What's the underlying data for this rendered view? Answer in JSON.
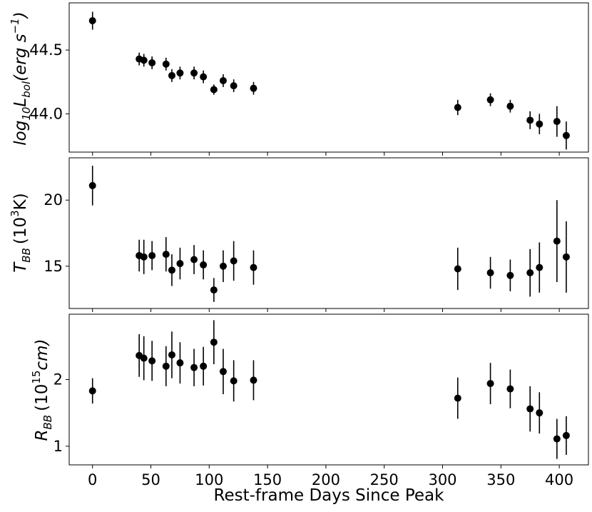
{
  "chart_data": [
    {
      "type": "scatter",
      "title": "",
      "xlabel": "Rest-frame Days Since Peak",
      "ylabel": "log10 Lbol (erg s^-1)",
      "ylabel_parts": {
        "prefix": "log",
        "sub1": "10",
        "main": "L",
        "sub2": "bol",
        "unit": "(erg s",
        "sup": "−1",
        "close": ")"
      },
      "xlim": [
        -20,
        425
      ],
      "ylim": [
        43.7,
        44.87
      ],
      "yticks": [
        44.0,
        44.5
      ],
      "ytick_labels": [
        "44.0",
        "44.5"
      ],
      "errorbars": true,
      "grid": false,
      "series": [
        {
          "x": [
            0,
            40,
            44,
            51,
            63,
            68,
            75,
            87,
            95,
            104,
            112,
            121,
            138,
            313,
            341,
            358,
            375,
            383,
            398,
            406
          ],
          "y": [
            44.73,
            44.43,
            44.42,
            44.4,
            44.39,
            44.3,
            44.32,
            44.32,
            44.29,
            44.19,
            44.26,
            44.22,
            44.2,
            44.05,
            44.11,
            44.06,
            43.95,
            43.92,
            43.94,
            43.83
          ],
          "err": [
            0.07,
            0.05,
            0.05,
            0.05,
            0.05,
            0.05,
            0.05,
            0.05,
            0.05,
            0.04,
            0.05,
            0.05,
            0.05,
            0.06,
            0.05,
            0.05,
            0.07,
            0.08,
            0.12,
            0.11
          ]
        }
      ]
    },
    {
      "type": "scatter",
      "title": "",
      "xlabel": "Rest-frame Days Since Peak",
      "ylabel": "T_BB (10^3 K)",
      "ylabel_parts": {
        "main": "T",
        "sub": "BB",
        "unit": "(10",
        "sup": "3",
        "close": "K)"
      },
      "xlim": [
        -20,
        425
      ],
      "ylim": [
        11.8,
        23.2
      ],
      "yticks": [
        15,
        20
      ],
      "ytick_labels": [
        "15",
        "20"
      ],
      "errorbars": true,
      "grid": false,
      "series": [
        {
          "x": [
            0,
            40,
            44,
            51,
            63,
            68,
            75,
            87,
            95,
            104,
            112,
            121,
            138,
            313,
            341,
            358,
            375,
            383,
            398,
            406
          ],
          "y": [
            21.1,
            15.8,
            15.7,
            15.8,
            15.9,
            14.7,
            15.2,
            15.5,
            15.1,
            13.2,
            15.0,
            15.4,
            14.9,
            14.8,
            14.5,
            14.3,
            14.5,
            14.9,
            16.9,
            15.7
          ],
          "err": [
            1.5,
            1.2,
            1.3,
            1.1,
            1.3,
            1.2,
            1.2,
            1.1,
            1.1,
            0.9,
            1.2,
            1.5,
            1.3,
            1.6,
            1.2,
            1.2,
            1.8,
            1.9,
            3.1,
            2.7
          ]
        }
      ]
    },
    {
      "type": "scatter",
      "title": "",
      "xlabel": "Rest-frame Days Since Peak",
      "ylabel": "R_BB (10^15 cm)",
      "ylabel_parts": {
        "main": "R",
        "sub": "BB",
        "unit": "(10",
        "sup": "15",
        "close": "cm)"
      },
      "xlim": [
        -20,
        425
      ],
      "ylim": [
        0.72,
        2.98
      ],
      "xticks": [
        0,
        50,
        100,
        150,
        200,
        250,
        300,
        350,
        400
      ],
      "xtick_labels": [
        "0",
        "50",
        "100",
        "150",
        "200",
        "250",
        "300",
        "350",
        "400"
      ],
      "yticks": [
        1,
        2
      ],
      "ytick_labels": [
        "1",
        "2"
      ],
      "errorbars": true,
      "grid": false,
      "series": [
        {
          "x": [
            0,
            40,
            44,
            51,
            63,
            68,
            75,
            87,
            95,
            104,
            112,
            121,
            138,
            313,
            341,
            358,
            375,
            383,
            398,
            406
          ],
          "y": [
            1.83,
            2.36,
            2.32,
            2.28,
            2.2,
            2.37,
            2.25,
            2.18,
            2.2,
            2.56,
            2.12,
            1.98,
            1.99,
            1.72,
            1.94,
            1.86,
            1.56,
            1.5,
            1.11,
            1.16
          ],
          "err": [
            0.19,
            0.32,
            0.33,
            0.3,
            0.3,
            0.35,
            0.31,
            0.28,
            0.29,
            0.33,
            0.34,
            0.31,
            0.3,
            0.31,
            0.31,
            0.29,
            0.34,
            0.31,
            0.3,
            0.29
          ]
        }
      ]
    }
  ]
}
